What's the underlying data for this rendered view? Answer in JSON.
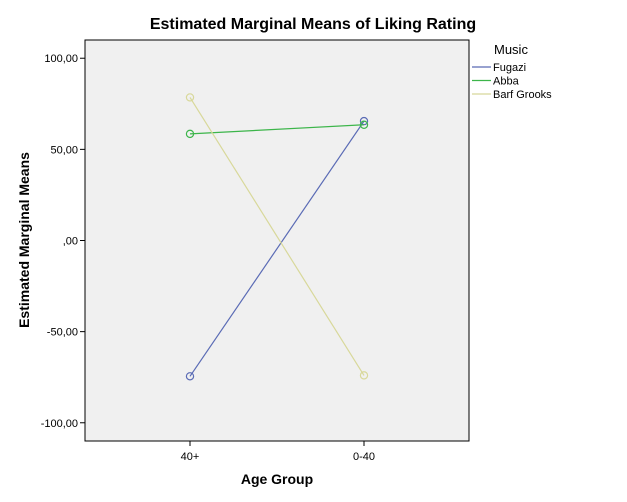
{
  "chart_data": {
    "type": "line",
    "title": "Estimated Marginal Means of Liking Rating",
    "xlabel": "Age Group",
    "ylabel": "Estimated Marginal Means",
    "categories": [
      "40+",
      "0-40"
    ],
    "ylim": [
      -110,
      110
    ],
    "yticks": [
      100,
      50,
      0,
      -50,
      -100
    ],
    "ytick_labels": [
      "100,00",
      "50,00",
      ",00",
      "-50,00",
      "-100,00"
    ],
    "grid": false,
    "legend": {
      "title": "Music",
      "placement": "top-right outside plot"
    },
    "plot_background": "#f0f0f0",
    "series": [
      {
        "name": "Fugazi",
        "color": "#5a6bb5",
        "values": [
          -74.5,
          65.5
        ]
      },
      {
        "name": "Abba",
        "color": "#3cb54a",
        "values": [
          58.5,
          63.5
        ]
      },
      {
        "name": "Barf Grooks",
        "color": "#d8d89a",
        "values": [
          78.5,
          -74.0
        ]
      }
    ]
  }
}
